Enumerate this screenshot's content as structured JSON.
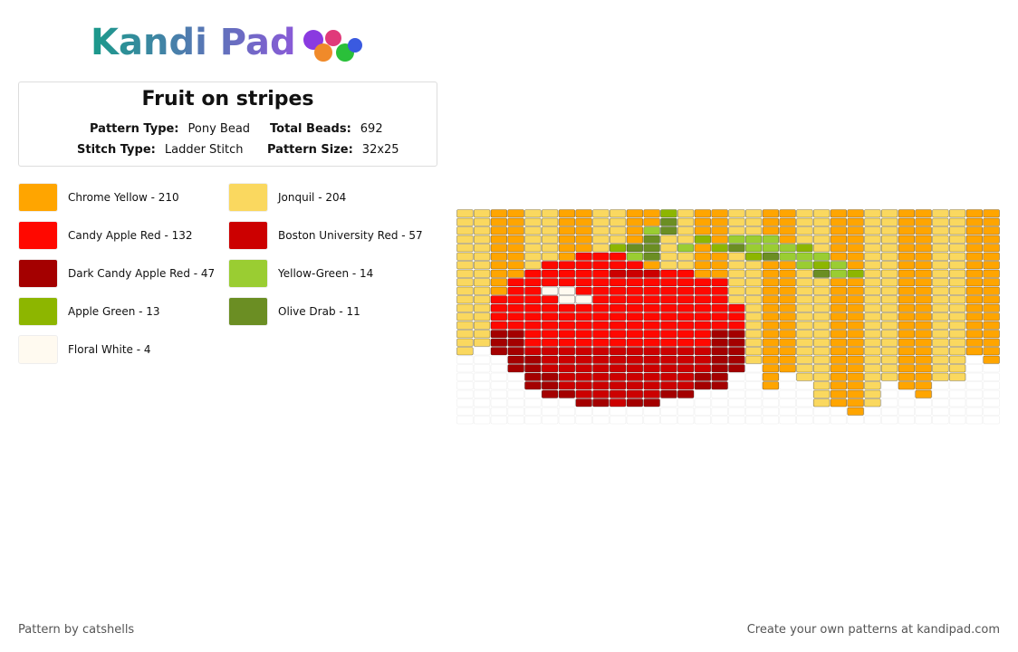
{
  "header": {
    "logo": "Kandi Pad",
    "title": "Fruit on stripes",
    "pattern_type_label": "Pattern Type:",
    "pattern_type": "Pony Bead",
    "total_beads_label": "Total Beads:",
    "total_beads": "692",
    "stitch_type_label": "Stitch Type:",
    "stitch_type": "Ladder Stitch",
    "pattern_size_label": "Pattern Size:",
    "pattern_size": "32x25"
  },
  "colors": [
    {
      "name": "Chrome Yellow - 210",
      "hex": "#ffa500"
    },
    {
      "name": "Jonquil - 204",
      "hex": "#fad85f"
    },
    {
      "name": "Candy Apple Red - 132",
      "hex": "#ff0800"
    },
    {
      "name": "Boston University Red - 57",
      "hex": "#cc0000"
    },
    {
      "name": "Dark Candy Apple Red - 47",
      "hex": "#a40000"
    },
    {
      "name": "Yellow-Green - 14",
      "hex": "#9acd32"
    },
    {
      "name": "Apple Green - 13",
      "hex": "#8db600"
    },
    {
      "name": "Olive Drab - 11",
      "hex": "#6b8e23"
    },
    {
      "name": "Floral White - 4",
      "hex": "#fffaf0"
    }
  ],
  "footer": {
    "credit": "Pattern by catshells",
    "link": "Create your own patterns at kandipad.com"
  }
}
